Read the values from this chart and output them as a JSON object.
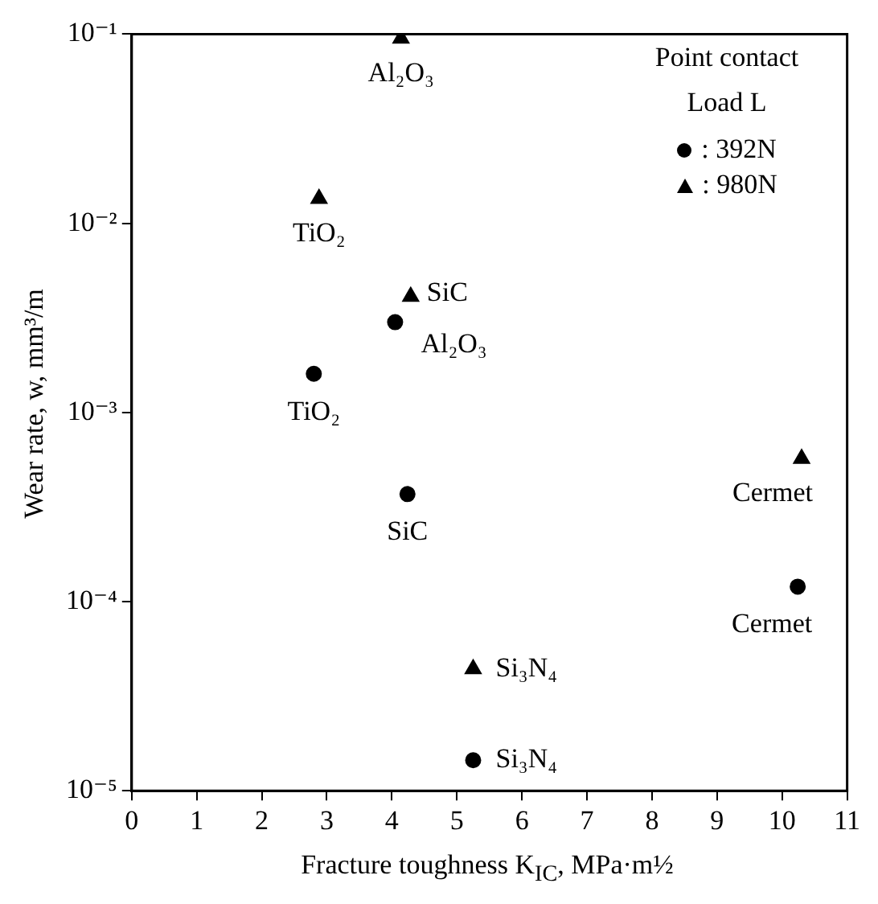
{
  "chart_data": {
    "type": "scatter",
    "xlabel": "Fracture toughness K$_{IC}$, MPa·m½",
    "ylabel": "Wear rate, w, mm³/m",
    "legend_title": "Point contact Load L",
    "legend": "top right",
    "log": "y",
    "grid": false,
    "xlim": [
      0,
      11
    ],
    "xticks": [
      0,
      1,
      2,
      3,
      4,
      5,
      6,
      7,
      8,
      9,
      10,
      11
    ],
    "ylim": [
      1e-05,
      0.1
    ],
    "yticks": [
      {
        "value": 1e-05,
        "label": "10⁻⁵"
      },
      {
        "value": 0.0001,
        "label": "10⁻⁴"
      },
      {
        "value": 0.001,
        "label": "10⁻³"
      },
      {
        "value": 0.01,
        "label": "10⁻²"
      },
      {
        "value": 0.1,
        "label": "10⁻¹"
      }
    ],
    "series": [
      {
        "name": ": 392N",
        "color": "#000000",
        "marker": "circle",
        "x": [
          4.05,
          2.8,
          4.24,
          10.24,
          5.25
        ],
        "values": [
          0.003,
          0.0016,
          0.00037,
          0.00012,
          1.45e-05
        ]
      },
      {
        "name": ": 980N",
        "color": "#000000",
        "marker": "triangle",
        "x": [
          4.14,
          2.88,
          4.29,
          10.3,
          5.25
        ],
        "values": [
          0.095,
          0.0135,
          0.0041,
          0.00057,
          4.4e-05
        ]
      }
    ],
    "annotations": [
      {
        "text": "Al₂O₃",
        "x": 4.14,
        "y": 0.095
      },
      {
        "text": "TiO₂",
        "x": 2.88,
        "y": 0.0135
      },
      {
        "text": "SiC",
        "x": 4.29,
        "y": 0.0041
      },
      {
        "text": "Al₂O₃",
        "x": 4.05,
        "y": 0.003
      },
      {
        "text": "TiO₂",
        "x": 2.8,
        "y": 0.0016
      },
      {
        "text": "SiC",
        "x": 4.24,
        "y": 0.00037
      },
      {
        "text": "Cermet",
        "x": 10.3,
        "y": 0.00057
      },
      {
        "text": "Cermet",
        "x": 10.24,
        "y": 0.00012
      },
      {
        "text": "Si₃N₄",
        "x": 5.25,
        "y": 4.4e-05
      },
      {
        "text": "Si₃N₄",
        "x": 5.25,
        "y": 1.45e-05
      }
    ]
  }
}
